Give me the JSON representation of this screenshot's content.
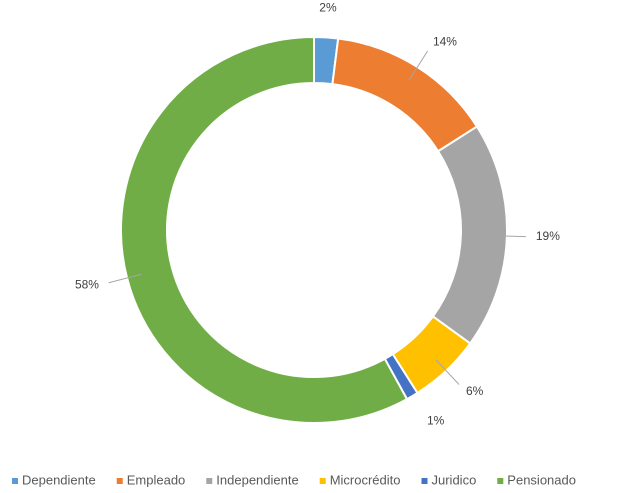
{
  "chart_data": {
    "type": "donut",
    "categories": [
      "Dependiente",
      "Empleado",
      "Independiente",
      "Microcrédito",
      "Juridico",
      "Pensionado"
    ],
    "values": [
      2,
      14,
      19,
      6,
      1,
      58
    ],
    "value_labels": [
      "2%",
      "14%",
      "19%",
      "6%",
      "1%",
      "58%"
    ],
    "colors": [
      "#5b9bd5",
      "#ed7d31",
      "#a5a5a5",
      "#ffc000",
      "#4472c4",
      "#70ad47"
    ],
    "legend": "bottom"
  }
}
